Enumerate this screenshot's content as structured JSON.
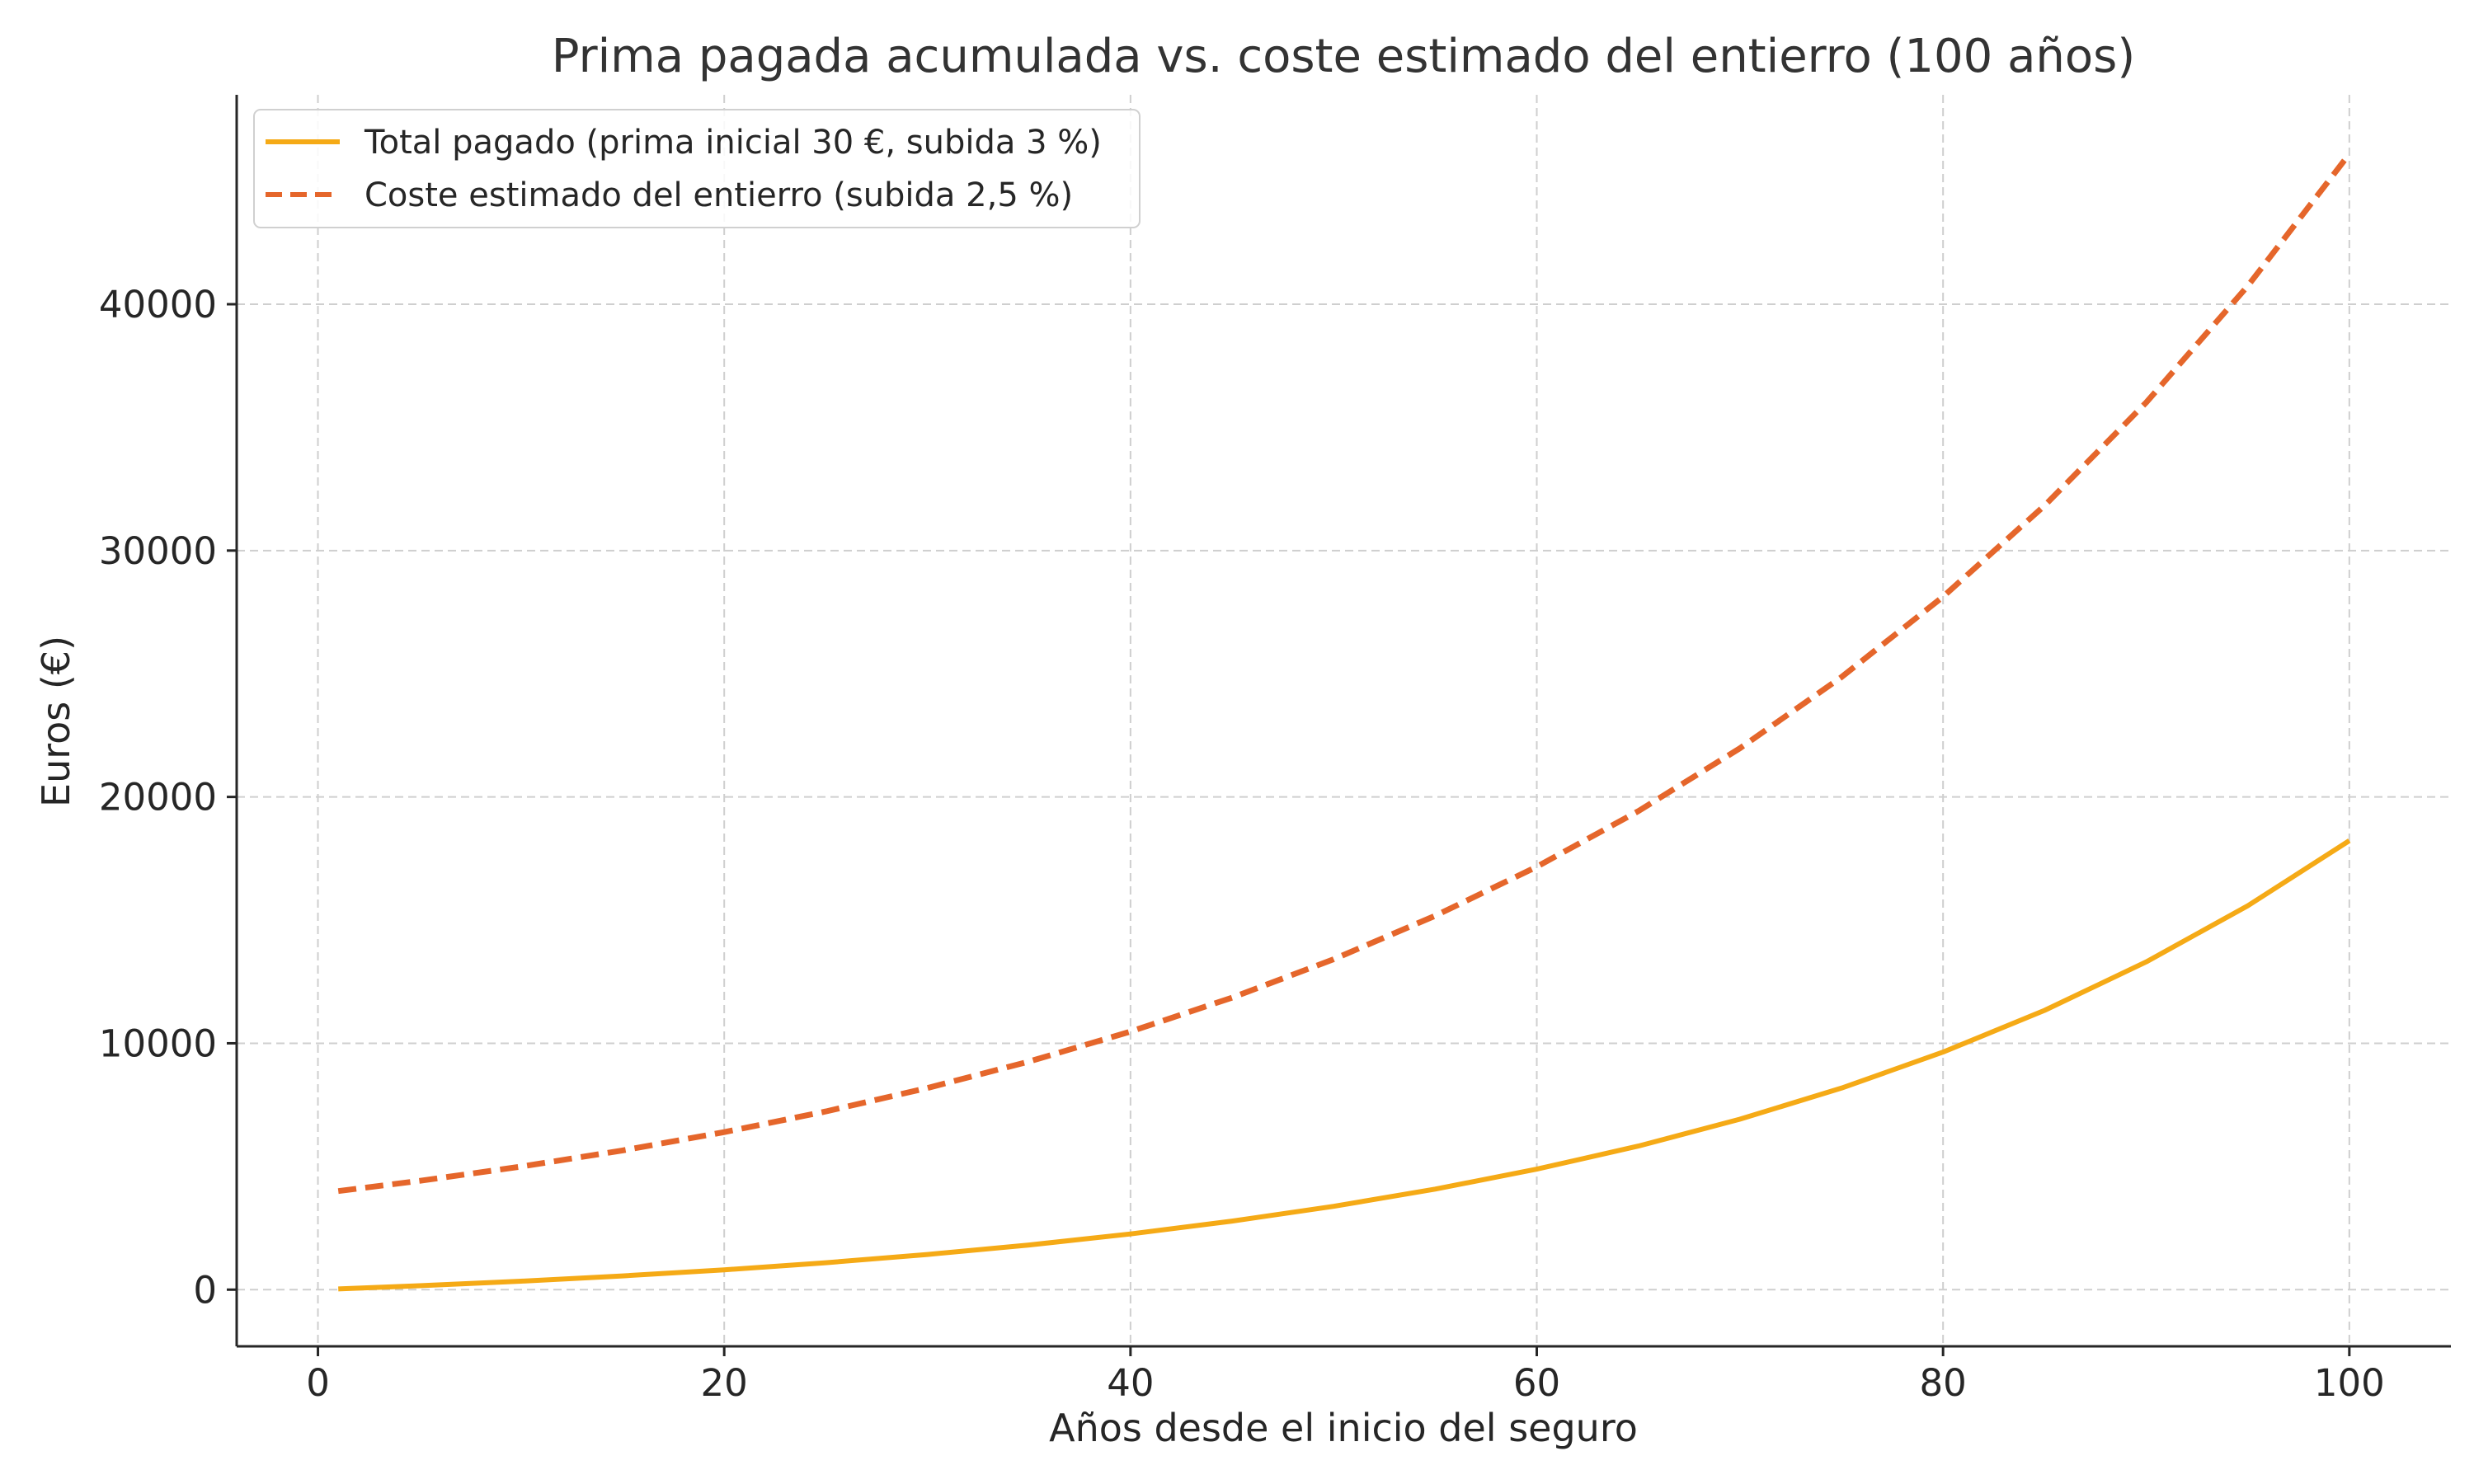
{
  "chart_data": {
    "type": "line",
    "title": "Prima pagada acumulada vs. coste estimado del entierro (100 años)",
    "xlabel": "Años desde el inicio del seguro",
    "ylabel": "Euros (€)",
    "xlim": [
      -4,
      105
    ],
    "ylim": [
      -2300,
      48500
    ],
    "xticks": [
      0,
      20,
      40,
      60,
      80,
      100
    ],
    "yticks": [
      0,
      10000,
      20000,
      30000,
      40000
    ],
    "grid": true,
    "legend_position": "top-left",
    "x": [
      1,
      5,
      10,
      15,
      20,
      25,
      30,
      35,
      40,
      45,
      50,
      55,
      60,
      65,
      70,
      75,
      80,
      85,
      90,
      95,
      100
    ],
    "series": [
      {
        "name": "Total pagado (prima inicial 30 €, subida 3 %)",
        "color": "#f5aa16",
        "style": "solid",
        "values": [
          30,
          159,
          344,
          558,
          806,
          1094,
          1427,
          1814,
          2262,
          2782,
          3384,
          4082,
          4892,
          5830,
          6918,
          8180,
          9643,
          11338,
          13304,
          15583,
          18225
        ]
      },
      {
        "name": "Coste estimado del entierro (subida 2,5 %)",
        "color": "#e5662b",
        "style": "dashed",
        "values": [
          4000,
          4415,
          4995,
          5651,
          6394,
          7234,
          8185,
          9260,
          10477,
          11854,
          13412,
          15174,
          17168,
          19424,
          21976,
          24864,
          28131,
          31828,
          36010,
          40742,
          46096
        ]
      }
    ]
  }
}
